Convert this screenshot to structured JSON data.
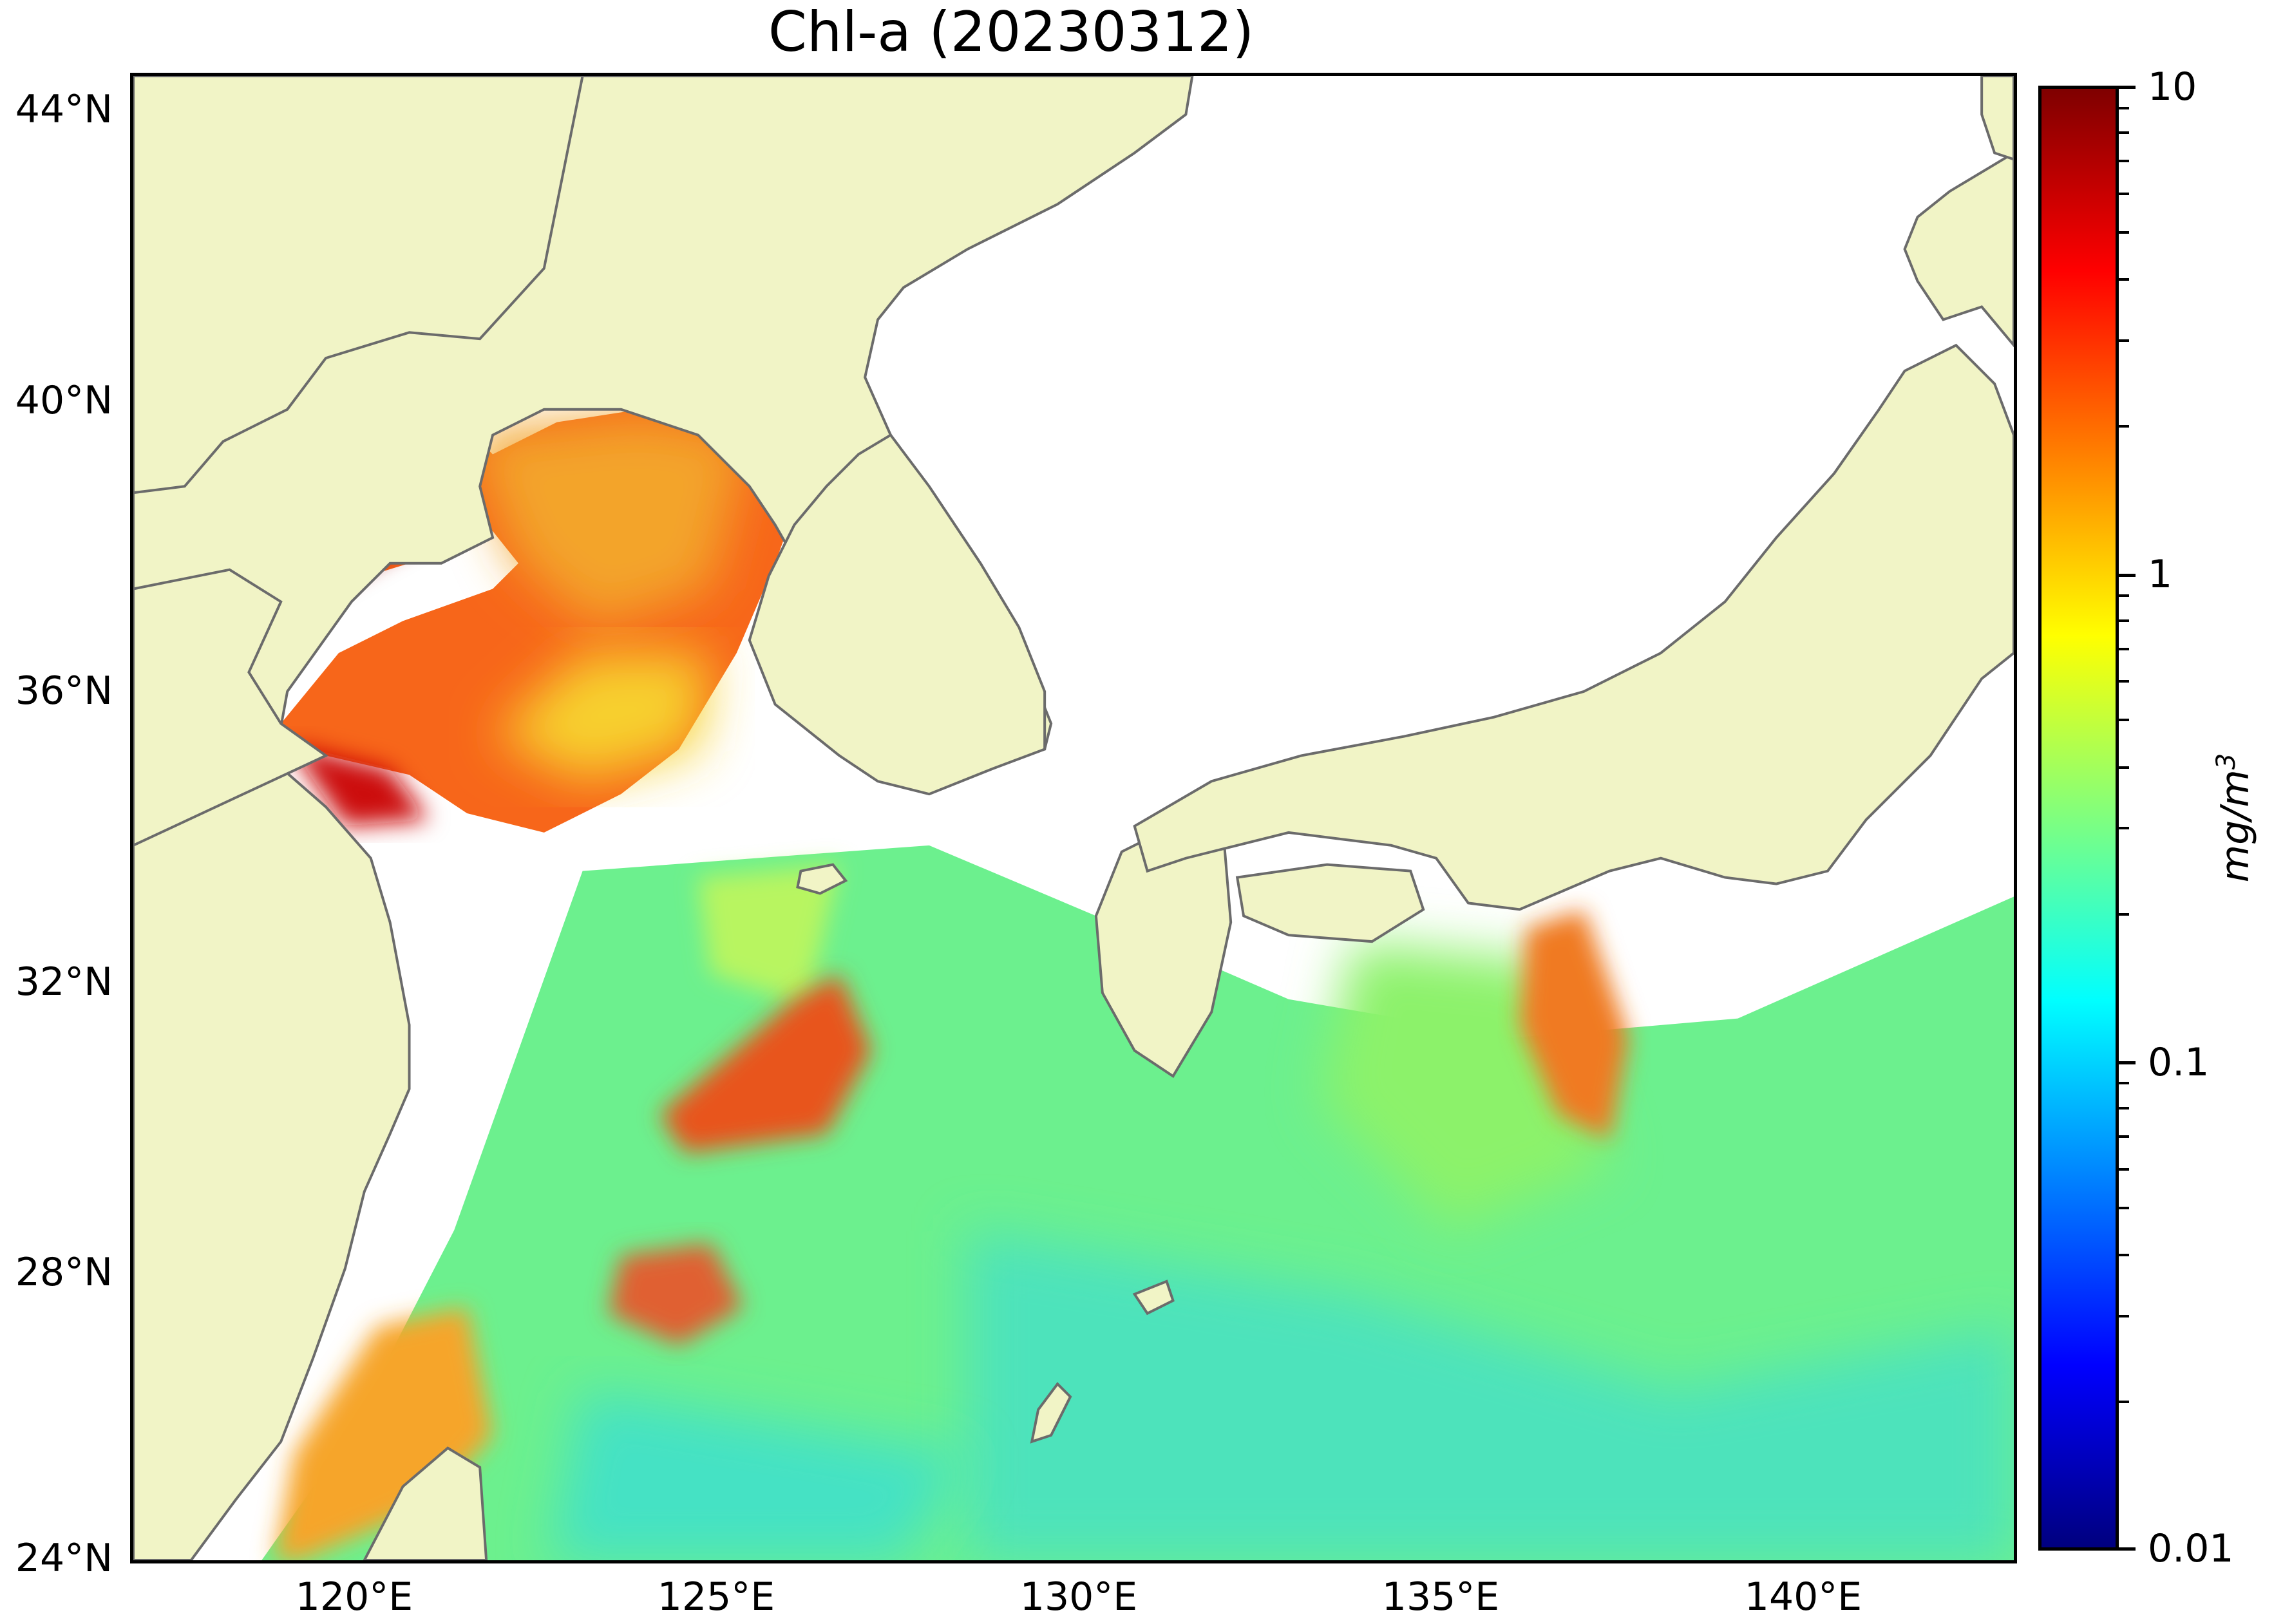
{
  "title": "Chl-a (20230312)",
  "map": {
    "region": {
      "lon_range": [
        117,
        143
      ],
      "lat_range": [
        24,
        44.5
      ]
    },
    "land_color": "#f1f4c6",
    "coast_color": "#6b6b6b",
    "no_data_color": "#ffffff"
  },
  "axes": {
    "lat_ticks": [
      {
        "label": "44°N",
        "value": 44
      },
      {
        "label": "40°N",
        "value": 40
      },
      {
        "label": "36°N",
        "value": 36
      },
      {
        "label": "32°N",
        "value": 32
      },
      {
        "label": "28°N",
        "value": 28
      },
      {
        "label": "24°N",
        "value": 24
      }
    ],
    "lon_ticks": [
      {
        "label": "120°E",
        "value": 120
      },
      {
        "label": "125°E",
        "value": 125
      },
      {
        "label": "130°E",
        "value": 130
      },
      {
        "label": "135°E",
        "value": 135
      },
      {
        "label": "140°E",
        "value": 140
      }
    ]
  },
  "colorbar": {
    "scale": "log",
    "range": [
      0.01,
      10
    ],
    "colormap": "jet",
    "colors": [
      "#00007f",
      "#0000ff",
      "#007fff",
      "#00ffff",
      "#7fff7f",
      "#ffff00",
      "#ff7f00",
      "#ff0000",
      "#7f0000"
    ],
    "ticks": [
      {
        "label": "10",
        "value": 10
      },
      {
        "label": "1",
        "value": 1
      },
      {
        "label": "0.1",
        "value": 0.1
      },
      {
        "label": "0.01",
        "value": 0.01
      }
    ],
    "unit": "mg/m",
    "unit_exponent": "3"
  }
}
